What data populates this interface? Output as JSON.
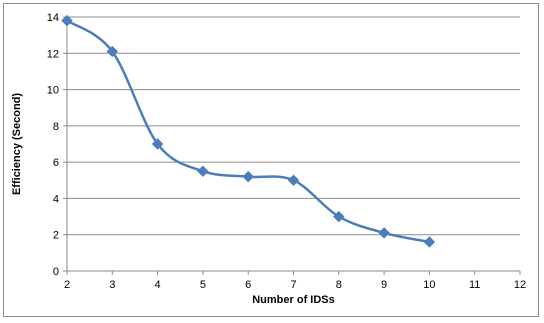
{
  "chart_data": {
    "type": "line",
    "title": "",
    "xlabel": "Number of IDSs",
    "ylabel": "Efficiency (Second)",
    "xlim": [
      2,
      12
    ],
    "ylim": [
      0,
      14
    ],
    "x_ticks": [
      2,
      3,
      4,
      5,
      6,
      7,
      8,
      9,
      10,
      11,
      12
    ],
    "y_ticks": [
      0,
      2,
      4,
      6,
      8,
      10,
      12,
      14
    ],
    "grid": "horizontal",
    "legend": "none",
    "smooth": true,
    "series": [
      {
        "color": "#4a7ebb",
        "marker": "diamond",
        "x": [
          2,
          3,
          4,
          5,
          6,
          7,
          8,
          9,
          10
        ],
        "y": [
          13.8,
          12.1,
          7.0,
          5.5,
          5.2,
          5.0,
          3.0,
          2.1,
          1.6
        ]
      }
    ]
  }
}
